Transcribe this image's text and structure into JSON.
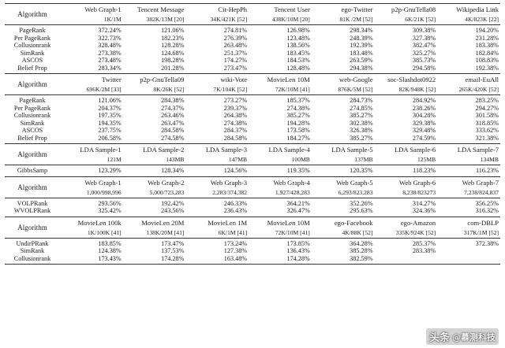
{
  "sections": [
    {
      "header_label": "Algorithm",
      "datasets": [
        {
          "name": "Web Graph-1",
          "size": "1K/1M"
        },
        {
          "name": "Tencent Message",
          "size": "382K/13M [20]"
        },
        {
          "name": "Cit-HepPh",
          "size": "34K/421K [52]"
        },
        {
          "name": "Tencent User",
          "size": "438K/10M [20]"
        },
        {
          "name": "ego-Twitter",
          "size": "81K /2M [52]"
        },
        {
          "name": "p2p-GnuTella08",
          "size": "6K/21K [52]"
        },
        {
          "name": "Wikipedia Link",
          "size": "4K/823K [22]"
        }
      ],
      "rows": [
        {
          "algorithm": "PageRank",
          "values": [
            "372.24%",
            "121.06%",
            "274.81%",
            "126.98%",
            "298.34%",
            "309.38%",
            "194.20%"
          ]
        },
        {
          "algorithm": "Per PageRank",
          "values": [
            "322.73%",
            "182.23%",
            "276.39%",
            "123.48%",
            "248.39%",
            "327.38%",
            "231.28%"
          ]
        },
        {
          "algorithm": "Collusionrank",
          "values": [
            "328.48%",
            "128.28%",
            "263.48%",
            "138.56%",
            "192.39%",
            "382.47%",
            "183.38%"
          ]
        },
        {
          "algorithm": "SimRank",
          "values": [
            "273.38%",
            "124.68%",
            "251.37%",
            "183.45%",
            "183.48%",
            "325.27%",
            "182.84%"
          ]
        },
        {
          "algorithm": "ASCOS",
          "values": [
            "273.48%",
            "198.28%",
            "174.27%",
            "184.53%",
            "263.59%",
            "385.73%",
            "108.83%"
          ]
        },
        {
          "algorithm": "Belief Prop",
          "values": [
            "283.34%",
            "201.28%",
            "273.47%",
            "128.48%",
            "294.38%",
            "294.58%",
            "192.38%"
          ]
        }
      ]
    },
    {
      "header_label": "Algorithm",
      "datasets": [
        {
          "name": "Twitter",
          "size": "696K/2M [33]"
        },
        {
          "name": "p2p-GnuTella09",
          "size": "8K/26K [52]"
        },
        {
          "name": "wiki-Vote",
          "size": "7K/104K [52]"
        },
        {
          "name": "MovieLen 10M",
          "size": "72K/10M [41]"
        },
        {
          "name": "web-Google",
          "size": "876K/5M [52]"
        },
        {
          "name": "soc-Slashdot0922",
          "size": "82K/948K [52]"
        },
        {
          "name": "email-EuAll",
          "size": "265K/420K [52]"
        }
      ],
      "rows": [
        {
          "algorithm": "PageRank",
          "values": [
            "121.06%",
            "284.38%",
            "273.27%",
            "185.37%",
            "284.73%",
            "284.92%",
            "283.25%"
          ]
        },
        {
          "algorithm": "Per PageRank",
          "values": [
            "204.37%",
            "274.37%",
            "239.37%",
            "274.38%",
            "274.85%",
            "238.26%",
            "294.27%"
          ]
        },
        {
          "algorithm": "Collusionrank",
          "values": [
            "197.35%",
            "263.46%",
            "264.38%",
            "385.27%",
            "385.27%",
            "304.28%",
            "301.58%"
          ]
        },
        {
          "algorithm": "SimRank",
          "values": [
            "194.35%",
            "263.47%",
            "274.38%",
            "194.28%",
            "302.38%",
            "329.38%",
            "318.85%"
          ]
        },
        {
          "algorithm": "ASCOS",
          "values": [
            "237.75%",
            "284.58%",
            "284.37%",
            "173.58%",
            "326.38%",
            "329.48%",
            "333.62%"
          ]
        },
        {
          "algorithm": "Belief Prop",
          "values": [
            "206.58%",
            "274.58%",
            "284.58%",
            "184.27%",
            "385.27%",
            "274.59%",
            "321.38%"
          ]
        }
      ]
    },
    {
      "header_label": "Algorithm",
      "datasets": [
        {
          "name": "LDA Sample-1",
          "size": "121M"
        },
        {
          "name": "LDA Sample-2",
          "size": "143MB"
        },
        {
          "name": "LDA Sample-3",
          "size": "147MB"
        },
        {
          "name": "LDA Sample-4",
          "size": "100MB"
        },
        {
          "name": "LDA Sample-5",
          "size": "137MB"
        },
        {
          "name": "LDA Sample-6",
          "size": "125MB"
        },
        {
          "name": "LDA Sample-7",
          "size": "134MB"
        }
      ],
      "rows": [
        {
          "algorithm": "GibbsSamp",
          "values": [
            "123.29%",
            "128.34%",
            "124.56%",
            "119.35%",
            "120.35%",
            "118.23%",
            "116.23%"
          ]
        }
      ]
    },
    {
      "header_label": "Algorithm",
      "datasets": [
        {
          "name": "Web Graph-1",
          "size": "1,000/998,996"
        },
        {
          "name": "Web Graph-2",
          "size": "5,000/723,283"
        },
        {
          "name": "Web Graph-3",
          "size": "2,283/374,382"
        },
        {
          "name": "Web Graph-4",
          "size": "1,927/428,283"
        },
        {
          "name": "Web Graph-5",
          "size": "6,293/823,283"
        },
        {
          "name": "Web Graph-6",
          "size": "8,238/823273"
        },
        {
          "name": "Web Graph-7",
          "size": "7,238/824,837"
        }
      ],
      "rows": [
        {
          "algorithm": "VOLPRank",
          "values": [
            "293.56%",
            "192.42%",
            "246.33%",
            "364.21%",
            "352.26%",
            "314.27%",
            "356.25%"
          ]
        },
        {
          "algorithm": "WVOLPRank",
          "values": [
            "325.42%",
            "243.56%",
            "236.43%",
            "326.47%",
            "295.63%",
            "324.36%",
            "316.32%"
          ]
        }
      ]
    },
    {
      "header_label": "Algorithm",
      "datasets": [
        {
          "name": "MovieLen 100k",
          "size": "1K/100K [41]"
        },
        {
          "name": "MovieLen 20M",
          "size": "138K/20M [41]"
        },
        {
          "name": "MovieLen 1M",
          "size": "6K/1M [41]"
        },
        {
          "name": "MovieLen 10M",
          "size": "72K/10M [41]"
        },
        {
          "name": "ego-Facebook",
          "size": "4K/88K [52]"
        },
        {
          "name": "ego-Amazon",
          "size": "335K/924K [52]"
        },
        {
          "name": "com-DBLP",
          "size": "317K/1M [52]"
        }
      ],
      "rows": [
        {
          "algorithm": "UndirPRank",
          "values": [
            "183.85%",
            "173.47%",
            "173.24%",
            "173.85%",
            "364.28%",
            "285.37%",
            "372.38%"
          ]
        },
        {
          "algorithm": "SimRank",
          "values": [
            "124.38%",
            "137.53%",
            "127.38%",
            "136.43%",
            "385.28%",
            "283.38%",
            ""
          ]
        },
        {
          "algorithm": "Collusionrank",
          "values": [
            "173.43%",
            "174.28%",
            "163.48%",
            "174.28%",
            "382.59%",
            "",
            ""
          ]
        }
      ]
    }
  ],
  "watermark": {
    "platform": "头条",
    "account": "@慕测科技"
  }
}
